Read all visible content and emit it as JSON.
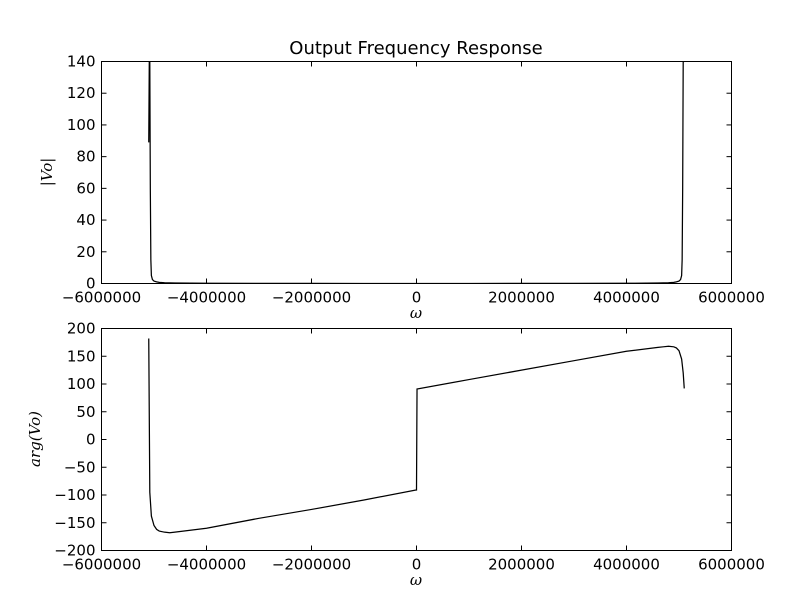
{
  "chart_data": [
    {
      "type": "line",
      "title": "Output Frequency Response",
      "xlabel": "ω",
      "ylabel": "|Vo|",
      "xlim": [
        -6000000,
        6000000
      ],
      "ylim": [
        0,
        140
      ],
      "grid": false,
      "x_ticks": [
        "−6000000",
        "−4000000",
        "−2000000",
        "0",
        "2000000",
        "4000000",
        "6000000"
      ],
      "y_ticks": [
        "0",
        "20",
        "40",
        "60",
        "80",
        "100",
        "120",
        "140"
      ],
      "series": [
        {
          "color": "#000000",
          "x": [
            -5100000,
            -5090000,
            -5080000,
            -5070000,
            -5060000,
            -5050000,
            -5030000,
            -5000000,
            -4950000,
            -4900000,
            -4800000,
            -4600000,
            -4000000,
            -3000000,
            -2000000,
            -1000000,
            0,
            1000000,
            2000000,
            3000000,
            4000000,
            4600000,
            4800000,
            4900000,
            4950000,
            5000000,
            5030000,
            5050000,
            5060000,
            5070000,
            5080000,
            5090000,
            5100000
          ],
          "y": [
            89,
            140,
            140,
            60,
            15,
            5,
            2.5,
            1.5,
            1.0,
            0.7,
            0.45,
            0.3,
            0.15,
            0.08,
            0.05,
            0.03,
            0.02,
            0.03,
            0.05,
            0.08,
            0.15,
            0.3,
            0.45,
            0.7,
            1.0,
            1.5,
            2.5,
            5,
            15,
            60,
            140,
            140,
            140
          ]
        }
      ]
    },
    {
      "type": "line",
      "title": "",
      "xlabel": "ω",
      "ylabel": "arg(Vo)",
      "xlim": [
        -6000000,
        6000000
      ],
      "ylim": [
        -200,
        200
      ],
      "grid": false,
      "x_ticks": [
        "−6000000",
        "−4000000",
        "−2000000",
        "0",
        "2000000",
        "4000000",
        "6000000"
      ],
      "y_ticks": [
        "−200",
        "−150",
        "−100",
        "−50",
        "0",
        "50",
        "100",
        "150",
        "200"
      ],
      "series": [
        {
          "color": "#000000",
          "x": [
            -5100000,
            -5080000,
            -5050000,
            -5000000,
            -4950000,
            -4900000,
            -4800000,
            -4700000,
            -4600000,
            -4000000,
            -3000000,
            -2000000,
            -1000000,
            -10000,
            0,
            10000,
            1000000,
            2000000,
            3000000,
            4000000,
            4600000,
            4700000,
            4800000,
            4900000,
            4950000,
            5000000,
            5050000,
            5080000,
            5100000
          ],
          "y": [
            182,
            -95,
            -138,
            -155,
            -162,
            -165,
            -167,
            -168,
            -167,
            -160,
            -142,
            -126,
            -109,
            -91,
            -91,
            91,
            108,
            125,
            142,
            159,
            166,
            167,
            168,
            167,
            165,
            160,
            145,
            120,
            92
          ]
        }
      ]
    }
  ]
}
